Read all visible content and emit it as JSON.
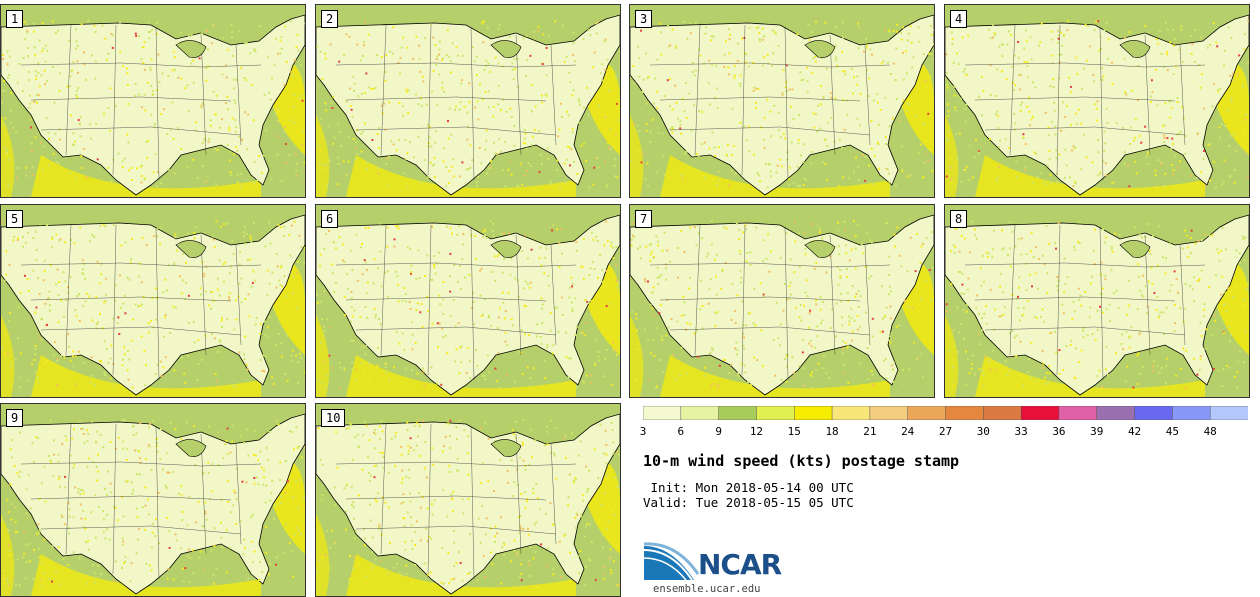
{
  "panels": [
    {
      "label": "1"
    },
    {
      "label": "2"
    },
    {
      "label": "3"
    },
    {
      "label": "4"
    },
    {
      "label": "5"
    },
    {
      "label": "6"
    },
    {
      "label": "7"
    },
    {
      "label": "8"
    },
    {
      "label": "9"
    },
    {
      "label": "10"
    }
  ],
  "legend": {
    "ticks": [
      "3",
      "6",
      "9",
      "12",
      "15",
      "18",
      "21",
      "24",
      "27",
      "30",
      "33",
      "36",
      "39",
      "42",
      "45",
      "48"
    ],
    "colors": [
      "#f4f9d0",
      "#e5f3a2",
      "#a8cc5c",
      "#e2ef50",
      "#f6ec00",
      "#f8e67a",
      "#f4cc80",
      "#eba65a",
      "#e5873e",
      "#dc7a44",
      "#e8103a",
      "#e060a8",
      "#9a70b0",
      "#6868f0",
      "#8898f8",
      "#b4c8fc"
    ]
  },
  "title": "10-m wind speed (kts) postage stamp",
  "init": " Init: Mon 2018-05-14 00 UTC",
  "valid": "Valid: Tue 2018-05-15 05 UTC",
  "logo": {
    "name": "NCAR",
    "url": "ensemble.ucar.edu",
    "color": "#1a4f8a"
  }
}
